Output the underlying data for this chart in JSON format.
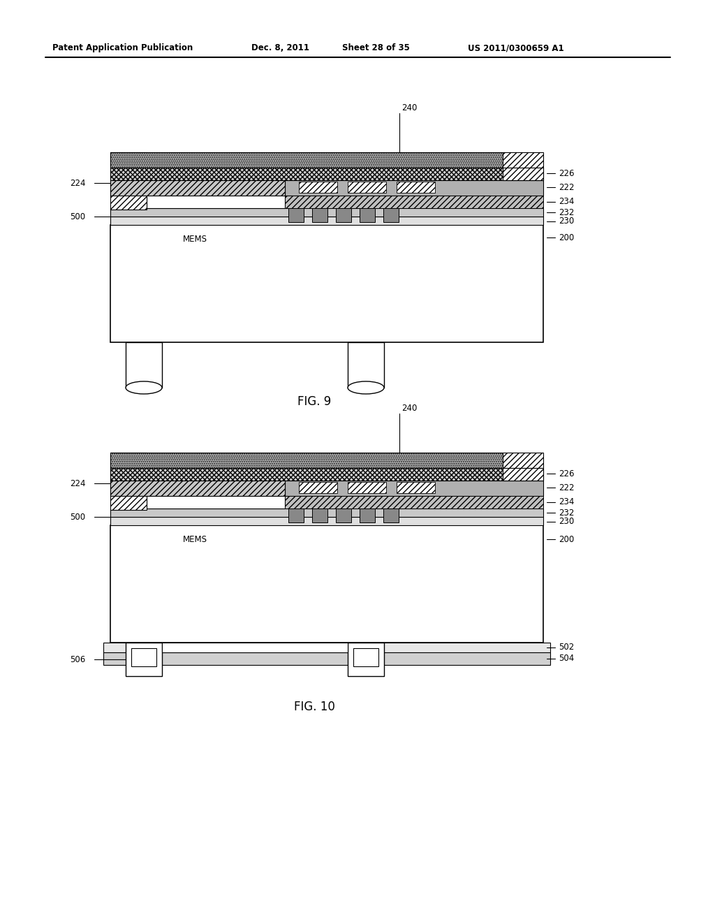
{
  "bg_color": "#ffffff",
  "header_left": "Patent Application Publication",
  "header_mid": "Dec. 8, 2011",
  "header_mid2": "Sheet 28 of 35",
  "header_right": "US 2011/0300659 A1",
  "fig9_label": "FIG. 9",
  "fig10_label": "FIG. 10",
  "label_color": "#000000"
}
